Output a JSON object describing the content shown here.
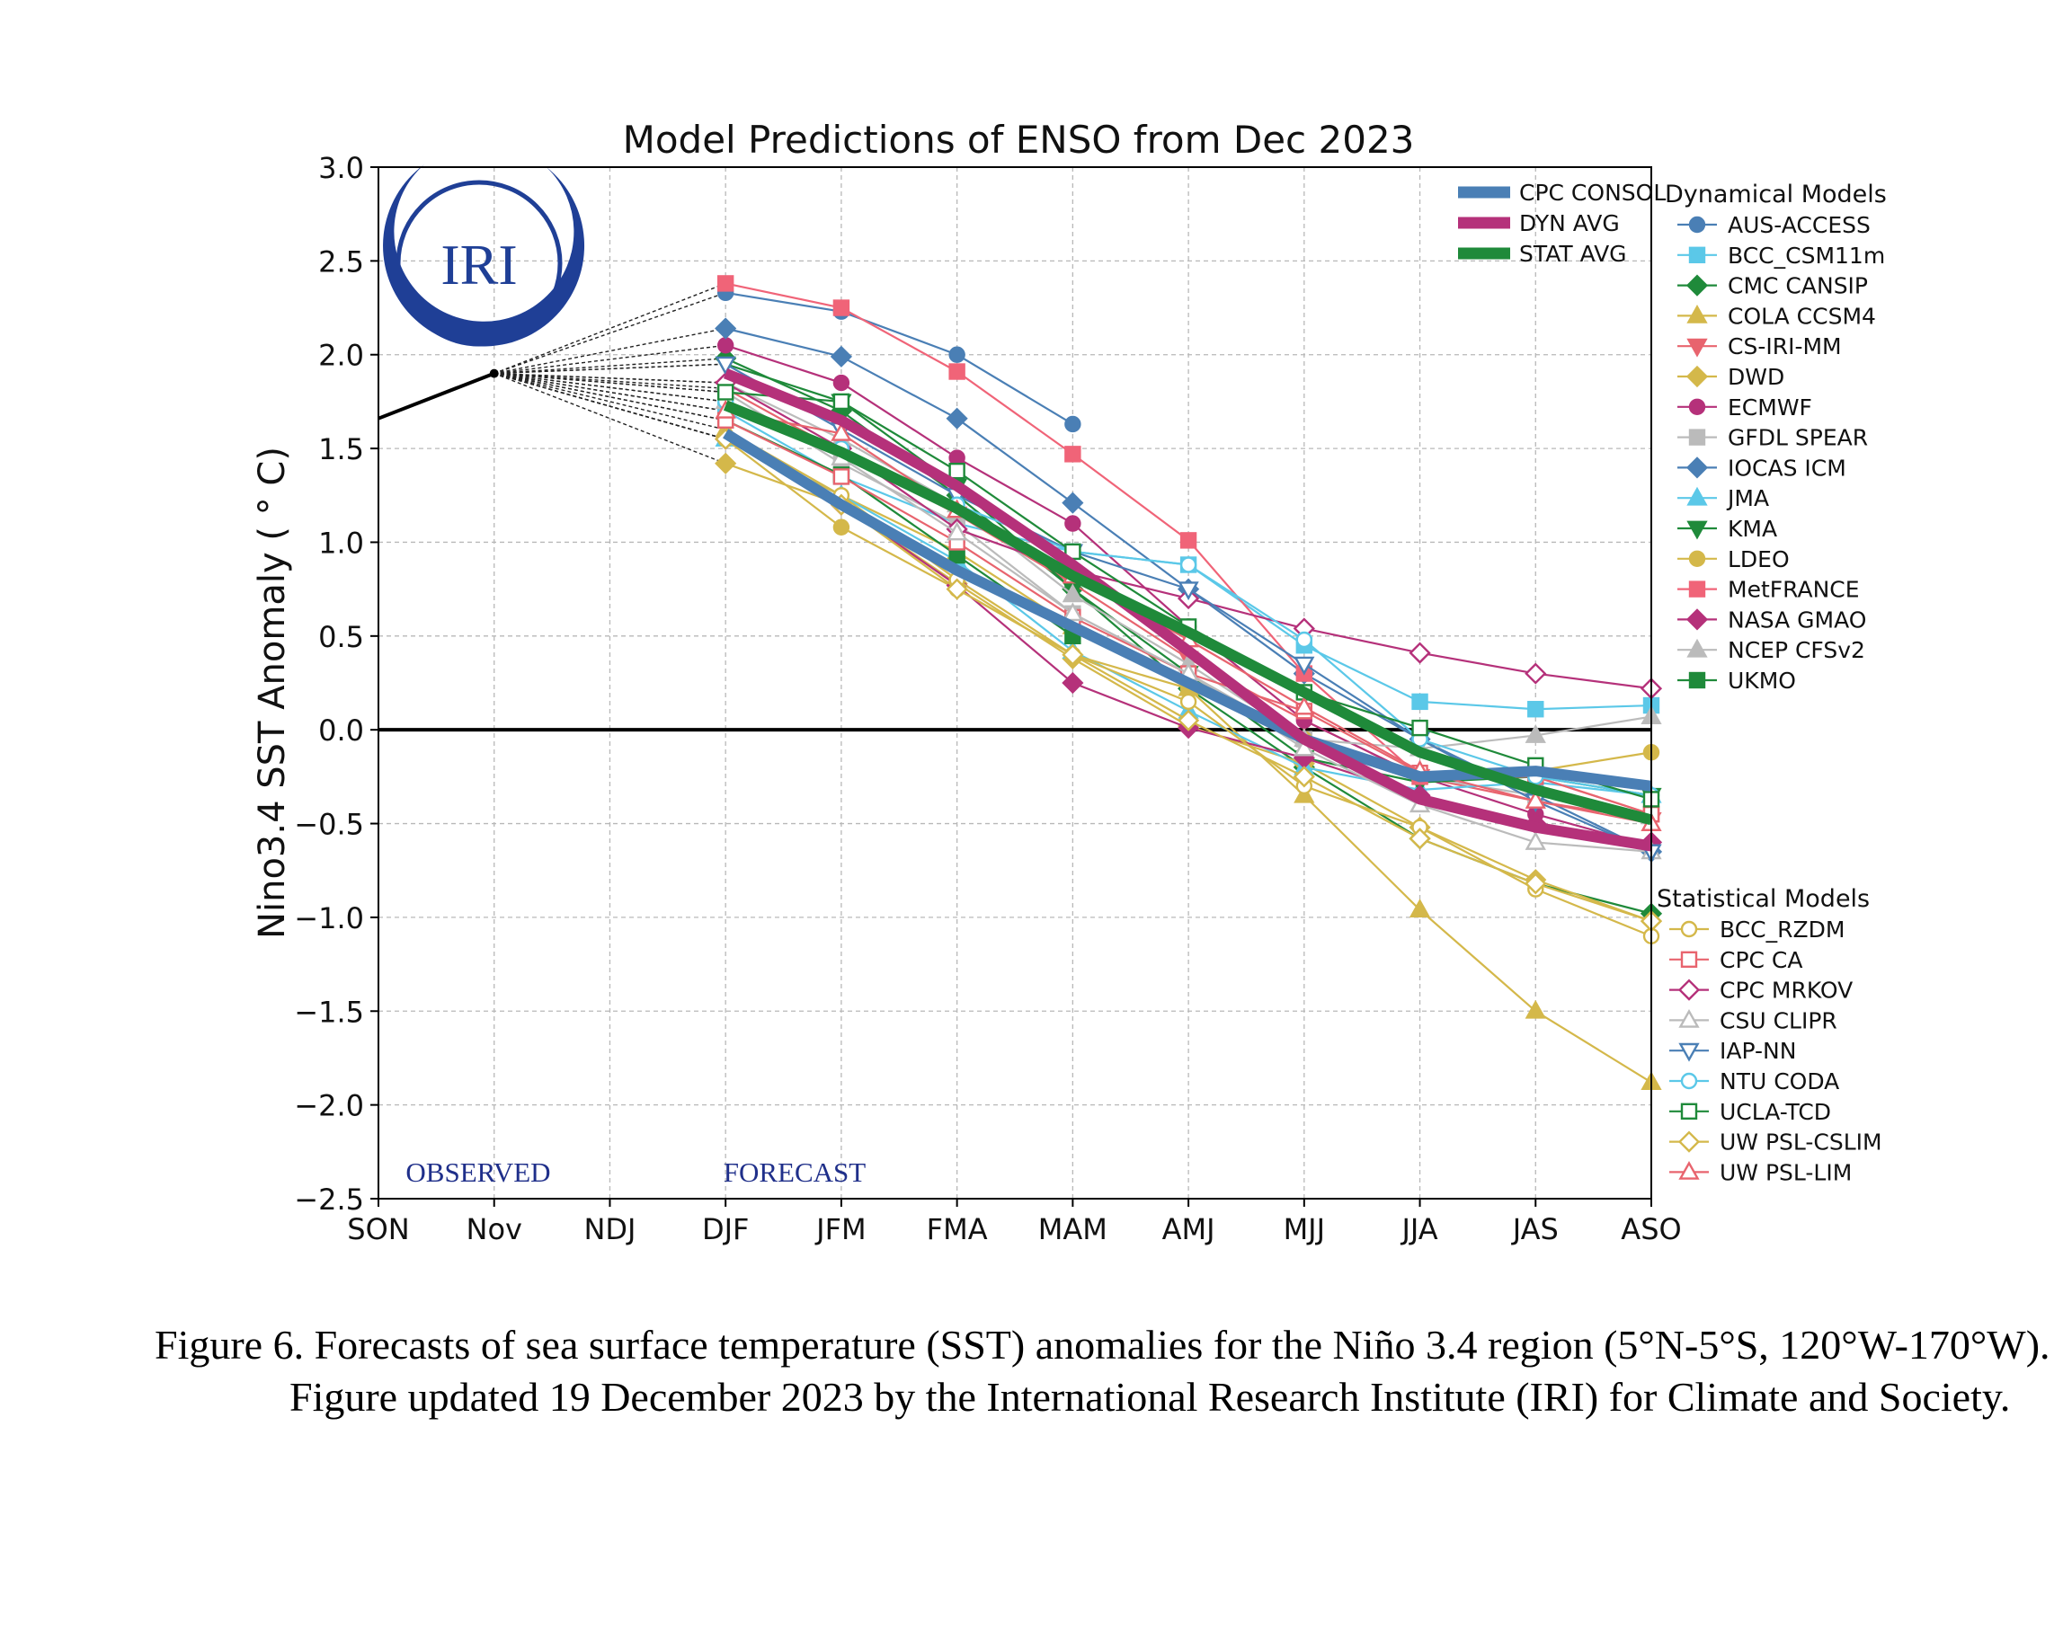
{
  "caption": "Figure 6. Forecasts of sea surface temperature (SST) anomalies for the Niño 3.4 region (5°N-5°S, 120°W-170°W). Figure updated 19 December 2023 by the International Research Institute (IRI) for Climate and Society.",
  "logo_text": "IRI",
  "chart_data": {
    "type": "line",
    "title": "Model Predictions of ENSO from Dec 2023",
    "xlabel": "",
    "ylabel": "Nino3.4 SST Anomaly ( ° C)",
    "categories": [
      "SON",
      "Nov",
      "NDJ",
      "DJF",
      "JFM",
      "FMA",
      "MAM",
      "AMJ",
      "MJJ",
      "JJA",
      "JAS",
      "ASO"
    ],
    "yticks": [
      "3.0",
      "2.5",
      "2.0",
      "1.5",
      "1.0",
      "0.5",
      "0.0",
      "−0.5",
      "−1.0",
      "−1.5",
      "−2.0",
      "−2.5"
    ],
    "ylim": [
      -2.5,
      3.0
    ],
    "grid": true,
    "annotations": {
      "observed": "OBSERVED",
      "forecast": "FORECAST"
    },
    "observed": {
      "x": [
        "SON",
        "Nov"
      ],
      "values": [
        1.66,
        1.9
      ],
      "color": "#000000"
    },
    "average_legend": [
      {
        "name": "CPC CONSOL",
        "color": "#4a7fb5"
      },
      {
        "name": "DYN AVG",
        "color": "#b5317a"
      },
      {
        "name": "STAT AVG",
        "color": "#1f8a3a"
      }
    ],
    "dynamical_title": "Dynamical Models",
    "statistical_title": "Statistical Models",
    "averages": [
      {
        "name": "CPC CONSOL",
        "color": "#4a7fb5",
        "values": [
          null,
          null,
          null,
          1.58,
          1.2,
          0.85,
          0.55,
          0.25,
          -0.05,
          -0.25,
          -0.22,
          -0.3
        ]
      },
      {
        "name": "DYN AVG",
        "color": "#b5317a",
        "values": [
          null,
          null,
          null,
          1.9,
          1.65,
          1.3,
          0.88,
          0.42,
          -0.05,
          -0.37,
          -0.52,
          -0.62
        ]
      },
      {
        "name": "STAT AVG",
        "color": "#1f8a3a",
        "values": [
          null,
          null,
          null,
          1.73,
          1.48,
          1.18,
          0.82,
          0.52,
          0.2,
          -0.12,
          -0.32,
          -0.48
        ]
      }
    ],
    "series": [
      {
        "name": "AUS-ACCESS",
        "group": "dyn",
        "color": "#4a7fb5",
        "marker": "circle",
        "fill": true,
        "values": [
          null,
          null,
          null,
          2.33,
          2.23,
          2.0,
          1.63,
          null,
          null,
          null,
          null,
          null
        ]
      },
      {
        "name": "BCC_CSM11m",
        "group": "dyn",
        "color": "#5bc8e8",
        "marker": "square",
        "fill": true,
        "values": [
          null,
          null,
          null,
          1.7,
          1.35,
          1.1,
          0.95,
          0.88,
          0.45,
          0.15,
          0.11,
          0.13
        ]
      },
      {
        "name": "CMC CANSIP",
        "group": "dyn",
        "color": "#1f8a3a",
        "marker": "diamond",
        "fill": true,
        "values": [
          null,
          null,
          null,
          1.98,
          1.7,
          1.25,
          0.75,
          0.22,
          -0.2,
          -0.58,
          -0.82,
          -0.98
        ]
      },
      {
        "name": "COLA CCSM4",
        "group": "dyn",
        "color": "#d4b84a",
        "marker": "triangle-up",
        "fill": true,
        "values": [
          null,
          null,
          null,
          1.6,
          1.25,
          0.95,
          0.55,
          0.22,
          -0.35,
          -0.96,
          -1.5,
          -1.88
        ]
      },
      {
        "name": "CS-IRI-MM",
        "group": "dyn",
        "color": "#e8646e",
        "marker": "triangle-down",
        "fill": true,
        "values": [
          null,
          null,
          null,
          1.82,
          1.48,
          1.15,
          0.78,
          0.38,
          0.05,
          -0.25,
          -0.38,
          -0.48
        ]
      },
      {
        "name": "DWD",
        "group": "dyn",
        "color": "#d4b84a",
        "marker": "diamond",
        "fill": true,
        "values": [
          null,
          null,
          null,
          1.42,
          1.2,
          0.78,
          0.38,
          0.02,
          -0.18,
          -0.52,
          -0.8,
          -1.02
        ]
      },
      {
        "name": "ECMWF",
        "group": "dyn",
        "color": "#b5317a",
        "marker": "circle",
        "fill": true,
        "values": [
          null,
          null,
          null,
          2.05,
          1.85,
          1.45,
          1.1,
          0.55,
          0.05,
          -0.25,
          -0.45,
          -0.62
        ]
      },
      {
        "name": "GFDL SPEAR",
        "group": "dyn",
        "color": "#bbbbbb",
        "marker": "square",
        "fill": true,
        "values": [
          null,
          null,
          null,
          1.8,
          1.42,
          1.1,
          0.62,
          0.3,
          -0.05,
          -0.25,
          -0.35,
          -0.45
        ]
      },
      {
        "name": "IOCAS ICM",
        "group": "dyn",
        "color": "#4a7fb5",
        "marker": "diamond",
        "fill": true,
        "values": [
          null,
          null,
          null,
          2.14,
          1.99,
          1.66,
          1.21,
          0.75,
          0.3,
          -0.05,
          -0.35,
          -0.65
        ]
      },
      {
        "name": "JMA",
        "group": "dyn",
        "color": "#5bc8e8",
        "marker": "triangle-up",
        "fill": true,
        "values": [
          null,
          null,
          null,
          1.55,
          1.25,
          0.9,
          0.42,
          0.1,
          -0.2,
          -0.32,
          -0.28,
          -0.35
        ]
      },
      {
        "name": "KMA",
        "group": "dyn",
        "color": "#1f8a3a",
        "marker": "triangle-down",
        "fill": true,
        "values": [
          null,
          null,
          null,
          1.95,
          1.75,
          1.3,
          0.75,
          0.3,
          -0.15,
          -0.28,
          -0.25,
          -0.35
        ]
      },
      {
        "name": "LDEO",
        "group": "dyn",
        "color": "#d4b84a",
        "marker": "circle",
        "fill": true,
        "values": [
          null,
          null,
          null,
          1.55,
          1.08,
          0.75,
          0.4,
          0.22,
          -0.05,
          -0.25,
          -0.22,
          -0.12
        ]
      },
      {
        "name": "MetFRANCE",
        "group": "dyn",
        "color": "#f06478",
        "marker": "square",
        "fill": true,
        "values": [
          null,
          null,
          null,
          2.38,
          2.25,
          1.91,
          1.47,
          1.01,
          0.3,
          -0.25,
          -0.25,
          -0.45
        ]
      },
      {
        "name": "NASA GMAO",
        "group": "dyn",
        "color": "#b5317a",
        "marker": "diamond",
        "fill": true,
        "values": [
          null,
          null,
          null,
          1.55,
          1.2,
          0.77,
          0.25,
          0.01,
          -0.15,
          -0.35,
          -0.5,
          -0.6
        ]
      },
      {
        "name": "NCEP CFSv2",
        "group": "dyn",
        "color": "#bbbbbb",
        "marker": "triangle-up",
        "fill": true,
        "values": [
          null,
          null,
          null,
          1.85,
          1.55,
          1.2,
          0.72,
          0.35,
          -0.05,
          -0.1,
          -0.03,
          0.07
        ]
      },
      {
        "name": "UKMO",
        "group": "dyn",
        "color": "#1f8a3a",
        "marker": "square",
        "fill": true,
        "values": [
          null,
          null,
          null,
          1.65,
          1.36,
          0.93,
          0.5,
          null,
          null,
          null,
          null,
          null
        ]
      },
      {
        "name": "BCC_RZDM",
        "group": "stat",
        "color": "#d4b84a",
        "marker": "circle",
        "fill": false,
        "values": [
          null,
          null,
          null,
          1.55,
          1.25,
          0.8,
          0.4,
          0.15,
          -0.3,
          -0.52,
          -0.85,
          -1.1
        ]
      },
      {
        "name": "CPC CA",
        "group": "stat",
        "color": "#e8646e",
        "marker": "square",
        "fill": false,
        "values": [
          null,
          null,
          null,
          1.65,
          1.35,
          1.0,
          0.6,
          0.3,
          0.1,
          -0.23,
          -0.25,
          -0.45
        ]
      },
      {
        "name": "CPC MRKOV",
        "group": "stat",
        "color": "#b5317a",
        "marker": "diamond",
        "fill": false,
        "values": [
          null,
          null,
          null,
          1.85,
          1.5,
          1.07,
          0.85,
          0.7,
          0.54,
          0.41,
          0.3,
          0.22
        ]
      },
      {
        "name": "CSU CLIPR",
        "group": "stat",
        "color": "#bbbbbb",
        "marker": "triangle-up",
        "fill": false,
        "values": [
          null,
          null,
          null,
          1.75,
          1.45,
          1.05,
          0.62,
          0.3,
          -0.1,
          -0.4,
          -0.6,
          -0.65
        ]
      },
      {
        "name": "IAP-NN",
        "group": "stat",
        "color": "#4a7fb5",
        "marker": "triangle-down",
        "fill": false,
        "values": [
          null,
          null,
          null,
          1.95,
          1.6,
          1.25,
          0.95,
          0.75,
          0.35,
          -0.05,
          -0.38,
          -0.65
        ]
      },
      {
        "name": "NTU CODA",
        "group": "stat",
        "color": "#5bc8e8",
        "marker": "circle",
        "fill": false,
        "values": [
          null,
          null,
          null,
          1.75,
          1.5,
          1.2,
          0.95,
          0.88,
          0.48,
          -0.05,
          -0.25,
          -0.35
        ]
      },
      {
        "name": "UCLA-TCD",
        "group": "stat",
        "color": "#1f8a3a",
        "marker": "square",
        "fill": false,
        "values": [
          null,
          null,
          null,
          1.8,
          1.75,
          1.38,
          0.95,
          0.55,
          0.2,
          0.01,
          -0.19,
          -0.37
        ]
      },
      {
        "name": "UW PSL-CSLIM",
        "group": "stat",
        "color": "#d4b84a",
        "marker": "diamond",
        "fill": false,
        "values": [
          null,
          null,
          null,
          1.55,
          1.2,
          0.75,
          0.4,
          0.05,
          -0.25,
          -0.58,
          -0.82,
          -1.02
        ]
      },
      {
        "name": "UW PSL-LIM",
        "group": "stat",
        "color": "#e8646e",
        "marker": "triangle-up",
        "fill": false,
        "values": [
          null,
          null,
          null,
          1.7,
          1.58,
          1.17,
          0.82,
          0.48,
          0.12,
          -0.22,
          -0.38,
          -0.5
        ]
      }
    ]
  }
}
